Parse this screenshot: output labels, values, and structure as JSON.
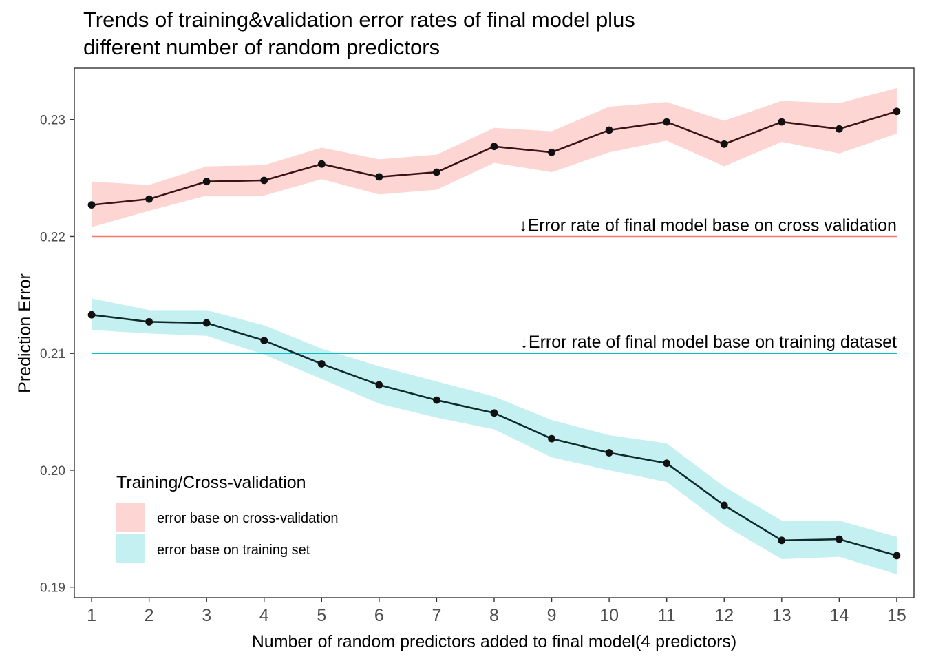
{
  "chart_data": {
    "type": "line",
    "title_lines": [
      "Trends of training&validation error rates of final model plus",
      "different number of random predictors"
    ],
    "xlabel": "Number of random predictors added to final model(4 predictors)",
    "ylabel": "Prediction Error",
    "x": [
      1,
      2,
      3,
      4,
      5,
      6,
      7,
      8,
      9,
      10,
      11,
      12,
      13,
      14,
      15
    ],
    "xlim": [
      0.7,
      15.3
    ],
    "ylim": [
      0.1891,
      0.2344
    ],
    "y_ticks": [
      0.19,
      0.2,
      0.21,
      0.22,
      0.23
    ],
    "y_tick_labels": [
      "0.19",
      "0.20",
      "0.21",
      "0.22",
      "0.23"
    ],
    "grid": false,
    "series": [
      {
        "name": "error base on cross-validation",
        "values": [
          0.2227,
          0.2232,
          0.2247,
          0.2248,
          0.2262,
          0.2251,
          0.2255,
          0.2277,
          0.2272,
          0.2291,
          0.2298,
          0.2279,
          0.2298,
          0.2292,
          0.2307
        ],
        "lower": [
          0.2208,
          0.2222,
          0.2235,
          0.2235,
          0.2249,
          0.2236,
          0.224,
          0.2263,
          0.2255,
          0.2272,
          0.2282,
          0.226,
          0.2281,
          0.2271,
          0.2288
        ],
        "upper": [
          0.2247,
          0.2244,
          0.226,
          0.2261,
          0.2276,
          0.2266,
          0.227,
          0.2293,
          0.229,
          0.2311,
          0.2315,
          0.2299,
          0.2316,
          0.2314,
          0.2327
        ],
        "fill_color": "#F8766D",
        "line_color": "#3a1414"
      },
      {
        "name": "error base on training set",
        "values": [
          0.2133,
          0.2127,
          0.2126,
          0.2111,
          0.2091,
          0.2073,
          0.206,
          0.2049,
          0.2027,
          0.2015,
          0.2006,
          0.197,
          0.194,
          0.1941,
          0.1927
        ],
        "lower": [
          0.212,
          0.2117,
          0.2115,
          0.2099,
          0.2078,
          0.2057,
          0.2045,
          0.2035,
          0.2011,
          0.2,
          0.199,
          0.1953,
          0.1924,
          0.1926,
          0.1911
        ],
        "upper": [
          0.2147,
          0.2137,
          0.2137,
          0.2124,
          0.2104,
          0.2089,
          0.2076,
          0.2063,
          0.2043,
          0.203,
          0.2023,
          0.1986,
          0.1957,
          0.1957,
          0.1943
        ],
        "fill_color": "#00BFC4",
        "line_color": "#0f2b2b"
      }
    ],
    "reference_lines": [
      {
        "y": 0.22,
        "x_from": 1,
        "x_to": 15,
        "color": "#F8766D",
        "label": "↓Error rate of final model base on cross validation"
      },
      {
        "y": 0.21,
        "x_from": 1,
        "x_to": 15,
        "color": "#00BFC4",
        "label": "↓Error rate of final model base on training dataset"
      }
    ],
    "legend": {
      "title": "Training/Cross-validation",
      "placement": "bottom-left inside plot",
      "entries": [
        "error base on cross-validation",
        "error base on training set"
      ]
    }
  }
}
